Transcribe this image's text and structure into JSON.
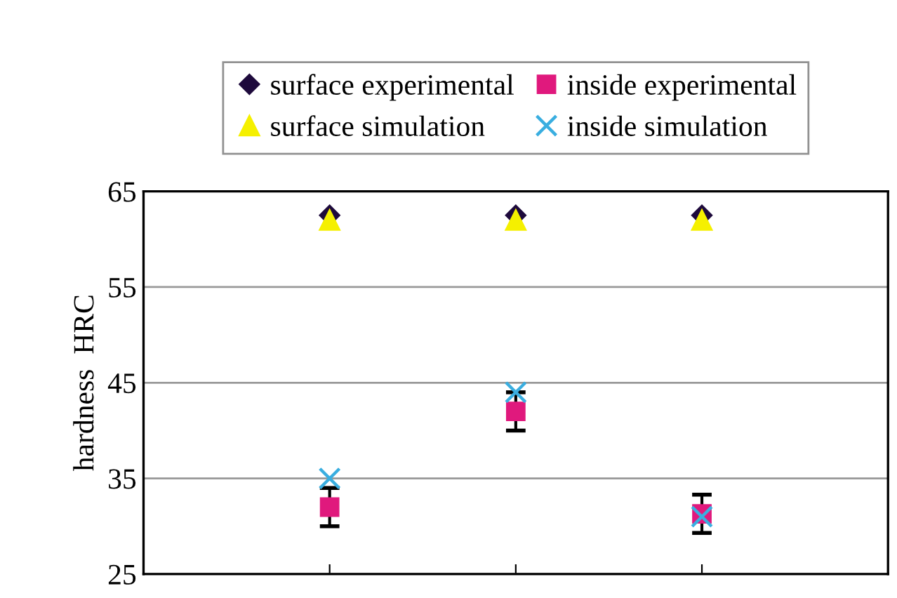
{
  "chart_data": {
    "type": "scatter",
    "ylabel": "hardness  HRC",
    "categories": [
      null,
      null,
      null
    ],
    "ylim": [
      25,
      65
    ],
    "yticks": [
      25,
      35,
      45,
      55,
      65
    ],
    "grid": "y",
    "legend": "top",
    "tick_labels": "y",
    "series": [
      {
        "name": "surface experimental",
        "color": "#1e0a3c",
        "marker": "diamond",
        "values": [
          62.5,
          62.5,
          62.5
        ]
      },
      {
        "name": "surface simulation",
        "color": "#f5f000",
        "marker": "triangle",
        "values": [
          62,
          62,
          62
        ]
      },
      {
        "name": "inside experimental",
        "color": "#e0197d",
        "marker": "square",
        "values": [
          32.0,
          42.0,
          31.3
        ],
        "errors": [
          2,
          2,
          2
        ]
      },
      {
        "name": "inside simulation",
        "color": "#3aaee0",
        "marker": "cross",
        "values": [
          35,
          44,
          31
        ]
      }
    ]
  }
}
